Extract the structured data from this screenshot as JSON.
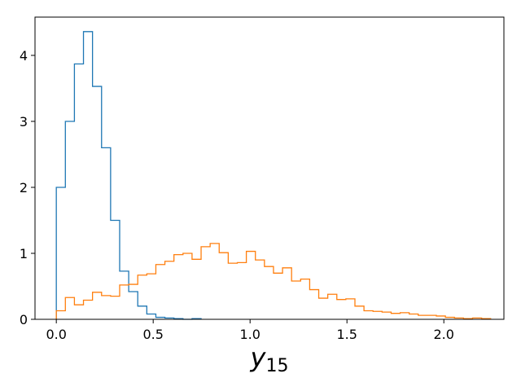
{
  "chart_data": {
    "type": "histogram",
    "title": "",
    "xlabel": {
      "main": "y",
      "sub": "15"
    },
    "ylabel": "",
    "xlim": [
      -0.11,
      2.31
    ],
    "ylim": [
      0,
      4.58
    ],
    "xticks": [
      0.0,
      0.5,
      1.0,
      1.5,
      2.0
    ],
    "xtick_labels": [
      "0.0",
      "0.5",
      "1.0",
      "1.5",
      "2.0"
    ],
    "yticks": [
      0,
      1,
      2,
      3,
      4
    ],
    "ytick_labels": [
      "0",
      "1",
      "2",
      "3",
      "4"
    ],
    "grid": false,
    "series": [
      {
        "color": "#1f77b4",
        "bin_start": 0.0,
        "bin_width": 0.0467,
        "values": [
          2.0,
          3.0,
          3.87,
          4.36,
          3.53,
          2.6,
          1.5,
          0.73,
          0.42,
          0.2,
          0.08,
          0.03,
          0.02,
          0.01,
          0.0,
          0.01
        ]
      },
      {
        "color": "#ff7f0e",
        "bin_start": 0.0,
        "bin_width": 0.0467,
        "values": [
          0.13,
          0.33,
          0.22,
          0.29,
          0.41,
          0.36,
          0.35,
          0.52,
          0.53,
          0.67,
          0.69,
          0.83,
          0.88,
          0.98,
          1.0,
          0.91,
          1.1,
          1.15,
          1.01,
          0.85,
          0.86,
          1.03,
          0.9,
          0.8,
          0.7,
          0.78,
          0.58,
          0.61,
          0.45,
          0.32,
          0.38,
          0.3,
          0.31,
          0.2,
          0.13,
          0.12,
          0.11,
          0.09,
          0.1,
          0.08,
          0.06,
          0.06,
          0.05,
          0.03,
          0.02,
          0.01,
          0.02,
          0.01
        ]
      }
    ]
  }
}
